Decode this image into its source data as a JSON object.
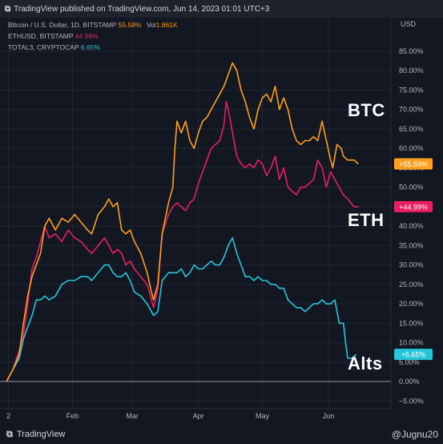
{
  "header": {
    "publisher_text": "TradingView published on TradingView.com, Jun 14, 2023 01:01 UTC+3"
  },
  "legend": {
    "btc_name": "Bitcoin / U.S. Dollar, 1D, BITSTAMP",
    "btc_value": "55.59%",
    "btc_vol_label": "Vol",
    "btc_vol_value": "1.861K",
    "eth_name": "ETHUSD, BITSTAMP",
    "eth_value": "44.99%",
    "total3_name": "TOTAL3, CRYPTOCAP",
    "total3_value": "6.65%"
  },
  "annotations": {
    "btc": "BTC",
    "eth": "ETH",
    "alts": "Alts"
  },
  "footer": {
    "brand": "TradingView",
    "credit": "@Jugnu20"
  },
  "colors": {
    "background": "#131722",
    "btc": "#ff9f1c",
    "eth": "#e91e63",
    "total3": "#26c6da",
    "grid": "#232632",
    "text": "#b2b5be"
  },
  "chart_data": {
    "type": "line",
    "title": "",
    "axis_currency": "USD",
    "y_unit": "%",
    "ylim": [
      -7,
      92
    ],
    "y_ticks": [
      "85.00%",
      "80.00%",
      "75.00%",
      "70.00%",
      "65.00%",
      "60.00%",
      "55.00%",
      "50.00%",
      "45.00%",
      "40.00%",
      "35.00%",
      "30.00%",
      "25.00%",
      "20.00%",
      "15.00%",
      "10.00%",
      "5.00%",
      "0.00%",
      "−5.00%"
    ],
    "y_tick_values": [
      85,
      80,
      75,
      70,
      65,
      60,
      55,
      50,
      45,
      40,
      35,
      30,
      25,
      20,
      15,
      10,
      5,
      0,
      -5
    ],
    "x_ticks": [
      {
        "label": "2",
        "day": 1
      },
      {
        "label": "Feb",
        "day": 31
      },
      {
        "label": "Mar",
        "day": 59
      },
      {
        "label": "Apr",
        "day": 90
      },
      {
        "label": "May",
        "day": 120
      },
      {
        "label": "Jun",
        "day": 151
      }
    ],
    "x_range_days": [
      0,
      166
    ],
    "x_note": "x = day index starting Jan 1, 2023",
    "grid": true,
    "series": [
      {
        "name": "Bitcoin / U.S. Dollar, 1D, BITSTAMP",
        "key": "btc",
        "last_label": "+55.59%",
        "points": [
          [
            0,
            0
          ],
          [
            3,
            3
          ],
          [
            6,
            7
          ],
          [
            8,
            15
          ],
          [
            10,
            22
          ],
          [
            12,
            27
          ],
          [
            14,
            30
          ],
          [
            16,
            33
          ],
          [
            18,
            40
          ],
          [
            20,
            42
          ],
          [
            23,
            39
          ],
          [
            26,
            42
          ],
          [
            29,
            41
          ],
          [
            32,
            43
          ],
          [
            35,
            41
          ],
          [
            38,
            39
          ],
          [
            40,
            38
          ],
          [
            43,
            43
          ],
          [
            46,
            45
          ],
          [
            48,
            47
          ],
          [
            50,
            45
          ],
          [
            52,
            46
          ],
          [
            54,
            39
          ],
          [
            56,
            38
          ],
          [
            58,
            39
          ],
          [
            60,
            36
          ],
          [
            63,
            33
          ],
          [
            66,
            28
          ],
          [
            68,
            23
          ],
          [
            69,
            21
          ],
          [
            71,
            25
          ],
          [
            73,
            38
          ],
          [
            76,
            46
          ],
          [
            78,
            50
          ],
          [
            79,
            60
          ],
          [
            80,
            67
          ],
          [
            82,
            64
          ],
          [
            84,
            67
          ],
          [
            86,
            62
          ],
          [
            88,
            60
          ],
          [
            90,
            64
          ],
          [
            92,
            67
          ],
          [
            94,
            68
          ],
          [
            96,
            70
          ],
          [
            98,
            72
          ],
          [
            100,
            74
          ],
          [
            102,
            76
          ],
          [
            104,
            79
          ],
          [
            106,
            82
          ],
          [
            108,
            80
          ],
          [
            110,
            75
          ],
          [
            112,
            72
          ],
          [
            114,
            68
          ],
          [
            116,
            65
          ],
          [
            118,
            70
          ],
          [
            120,
            73
          ],
          [
            122,
            74
          ],
          [
            124,
            72
          ],
          [
            126,
            76
          ],
          [
            128,
            70
          ],
          [
            130,
            73
          ],
          [
            132,
            70
          ],
          [
            134,
            65
          ],
          [
            136,
            62
          ],
          [
            138,
            61
          ],
          [
            140,
            62
          ],
          [
            142,
            62
          ],
          [
            144,
            63
          ],
          [
            146,
            62
          ],
          [
            148,
            67
          ],
          [
            150,
            62
          ],
          [
            152,
            57
          ],
          [
            153,
            55
          ],
          [
            155,
            61
          ],
          [
            157,
            60
          ],
          [
            158,
            58
          ],
          [
            160,
            57
          ],
          [
            163,
            57
          ],
          [
            165,
            56
          ]
        ]
      },
      {
        "name": "ETHUSD, BITSTAMP",
        "key": "eth",
        "last_label": "+44.99%",
        "points": [
          [
            0,
            0
          ],
          [
            3,
            3
          ],
          [
            6,
            8
          ],
          [
            8,
            12
          ],
          [
            10,
            20
          ],
          [
            12,
            29
          ],
          [
            14,
            32
          ],
          [
            16,
            36
          ],
          [
            18,
            40
          ],
          [
            20,
            37
          ],
          [
            23,
            38
          ],
          [
            26,
            36
          ],
          [
            29,
            39
          ],
          [
            32,
            37
          ],
          [
            35,
            36
          ],
          [
            38,
            34
          ],
          [
            40,
            33
          ],
          [
            43,
            35
          ],
          [
            46,
            37
          ],
          [
            48,
            35
          ],
          [
            50,
            33
          ],
          [
            52,
            34
          ],
          [
            54,
            33
          ],
          [
            56,
            30
          ],
          [
            58,
            31
          ],
          [
            60,
            29
          ],
          [
            63,
            27
          ],
          [
            66,
            25
          ],
          [
            68,
            21
          ],
          [
            69,
            19
          ],
          [
            71,
            24
          ],
          [
            73,
            38
          ],
          [
            76,
            43
          ],
          [
            78,
            45
          ],
          [
            80,
            46
          ],
          [
            82,
            45
          ],
          [
            84,
            44
          ],
          [
            86,
            46
          ],
          [
            88,
            47
          ],
          [
            90,
            51
          ],
          [
            92,
            54
          ],
          [
            94,
            57
          ],
          [
            96,
            60
          ],
          [
            98,
            61
          ],
          [
            100,
            62
          ],
          [
            102,
            66
          ],
          [
            103,
            72
          ],
          [
            104,
            70
          ],
          [
            105,
            67
          ],
          [
            106,
            64
          ],
          [
            108,
            58
          ],
          [
            110,
            56
          ],
          [
            112,
            55
          ],
          [
            114,
            56
          ],
          [
            116,
            55
          ],
          [
            118,
            57
          ],
          [
            120,
            56
          ],
          [
            122,
            53
          ],
          [
            124,
            55
          ],
          [
            126,
            58
          ],
          [
            128,
            52
          ],
          [
            130,
            55
          ],
          [
            132,
            50
          ],
          [
            134,
            49
          ],
          [
            136,
            48
          ],
          [
            138,
            50
          ],
          [
            140,
            50
          ],
          [
            142,
            51
          ],
          [
            144,
            52
          ],
          [
            146,
            57
          ],
          [
            148,
            55
          ],
          [
            150,
            50
          ],
          [
            152,
            54
          ],
          [
            154,
            52
          ],
          [
            156,
            50
          ],
          [
            158,
            48
          ],
          [
            160,
            47
          ],
          [
            163,
            45
          ],
          [
            165,
            45
          ]
        ]
      },
      {
        "name": "TOTAL3, CRYPTOCAP",
        "key": "total3",
        "last_label": "+6.65%",
        "points": [
          [
            0,
            0
          ],
          [
            3,
            3
          ],
          [
            6,
            6
          ],
          [
            8,
            11
          ],
          [
            10,
            14
          ],
          [
            12,
            17
          ],
          [
            14,
            21
          ],
          [
            16,
            21
          ],
          [
            18,
            22
          ],
          [
            20,
            21
          ],
          [
            23,
            22
          ],
          [
            26,
            25
          ],
          [
            29,
            26
          ],
          [
            32,
            26
          ],
          [
            35,
            27
          ],
          [
            38,
            27
          ],
          [
            40,
            26
          ],
          [
            43,
            28
          ],
          [
            46,
            30
          ],
          [
            48,
            30
          ],
          [
            50,
            28
          ],
          [
            52,
            27
          ],
          [
            54,
            27
          ],
          [
            56,
            28
          ],
          [
            58,
            26
          ],
          [
            60,
            23
          ],
          [
            63,
            22
          ],
          [
            66,
            20
          ],
          [
            68,
            18
          ],
          [
            69,
            17
          ],
          [
            71,
            18
          ],
          [
            73,
            26
          ],
          [
            76,
            28
          ],
          [
            78,
            28
          ],
          [
            80,
            28
          ],
          [
            82,
            29
          ],
          [
            84,
            27
          ],
          [
            86,
            28
          ],
          [
            88,
            30
          ],
          [
            90,
            29
          ],
          [
            92,
            29
          ],
          [
            94,
            30
          ],
          [
            96,
            31
          ],
          [
            98,
            30
          ],
          [
            100,
            30
          ],
          [
            102,
            32
          ],
          [
            104,
            35
          ],
          [
            106,
            37
          ],
          [
            108,
            33
          ],
          [
            110,
            30
          ],
          [
            112,
            27
          ],
          [
            114,
            27
          ],
          [
            116,
            26
          ],
          [
            118,
            27
          ],
          [
            120,
            26
          ],
          [
            122,
            26
          ],
          [
            124,
            25
          ],
          [
            126,
            25
          ],
          [
            128,
            24
          ],
          [
            130,
            24
          ],
          [
            132,
            21
          ],
          [
            134,
            20
          ],
          [
            136,
            19
          ],
          [
            138,
            19
          ],
          [
            140,
            18
          ],
          [
            142,
            19
          ],
          [
            144,
            20
          ],
          [
            146,
            20
          ],
          [
            148,
            21
          ],
          [
            150,
            20
          ],
          [
            152,
            20
          ],
          [
            154,
            21
          ],
          [
            156,
            15
          ],
          [
            158,
            15
          ],
          [
            159,
            10
          ],
          [
            160,
            6
          ],
          [
            162,
            6
          ],
          [
            164,
            7
          ]
        ]
      }
    ]
  }
}
